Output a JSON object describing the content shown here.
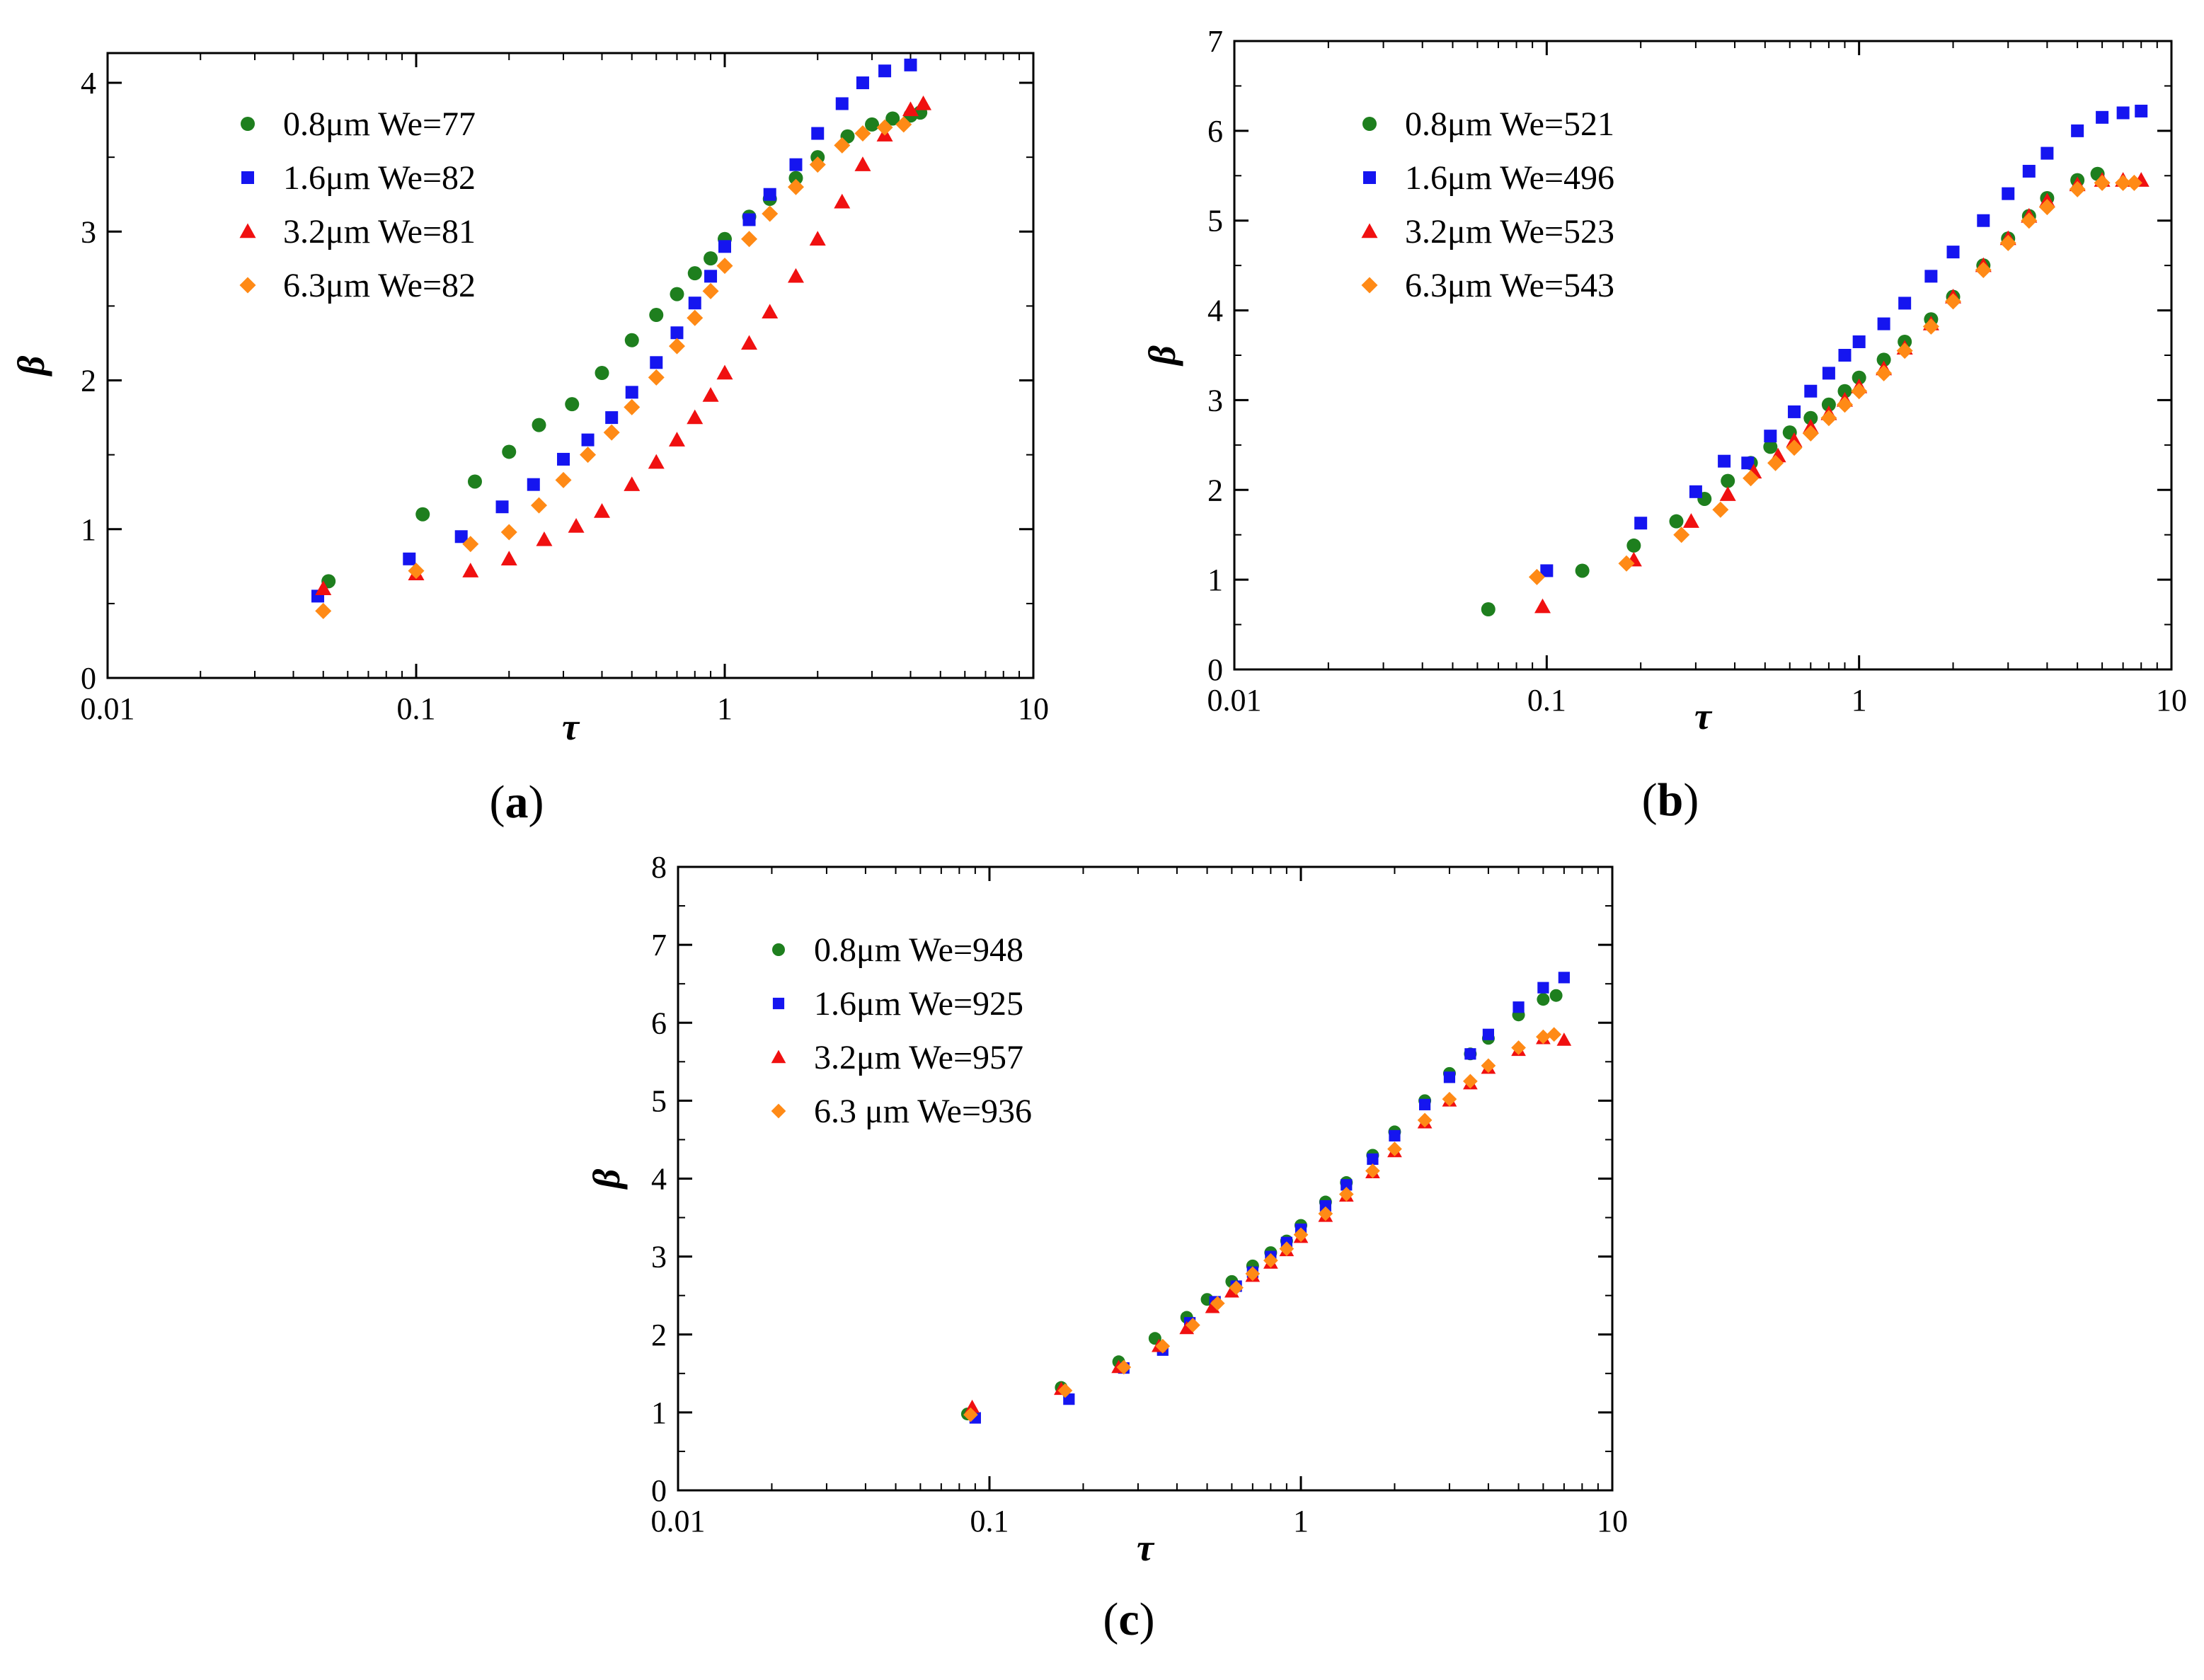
{
  "chart_data": [
    {
      "panel": "a",
      "caption": "(a)",
      "caption_letter": "a",
      "type": "scatter",
      "xscale": "log",
      "xlim": [
        0.01,
        10
      ],
      "ylim": [
        0,
        4.2
      ],
      "xticks": [
        0.01,
        0.1,
        1,
        10
      ],
      "xtick_labels": [
        "0.01",
        "0.1",
        "1",
        "10"
      ],
      "yticks": [
        0,
        1,
        2,
        3,
        4
      ],
      "ytick_labels": [
        "0",
        "1",
        "2",
        "3",
        "4"
      ],
      "xlabel": "τ",
      "ylabel": "β",
      "legend_position": "top-left",
      "series": [
        {
          "name": "0.8μm We=77",
          "marker": "circle",
          "color": "#1e7f1e",
          "x": [
            0.052,
            0.105,
            0.155,
            0.2,
            0.25,
            0.32,
            0.4,
            0.5,
            0.6,
            0.7,
            0.8,
            0.9,
            1.0,
            1.2,
            1.4,
            1.7,
            2.0,
            2.5,
            3.0,
            3.5,
            4.0,
            4.3
          ],
          "values": [
            0.65,
            1.1,
            1.32,
            1.52,
            1.7,
            1.84,
            2.05,
            2.27,
            2.44,
            2.58,
            2.72,
            2.82,
            2.95,
            3.1,
            3.22,
            3.36,
            3.5,
            3.64,
            3.72,
            3.76,
            3.78,
            3.8
          ]
        },
        {
          "name": "1.6μm We=82",
          "marker": "square",
          "color": "#1515f0",
          "x": [
            0.048,
            0.095,
            0.14,
            0.19,
            0.24,
            0.3,
            0.36,
            0.43,
            0.5,
            0.6,
            0.7,
            0.8,
            0.9,
            1.0,
            1.2,
            1.4,
            1.7,
            2.0,
            2.4,
            2.8,
            3.3,
            4.0
          ],
          "values": [
            0.55,
            0.8,
            0.95,
            1.15,
            1.3,
            1.47,
            1.6,
            1.75,
            1.92,
            2.12,
            2.32,
            2.52,
            2.7,
            2.9,
            3.08,
            3.25,
            3.45,
            3.66,
            3.86,
            4.0,
            4.08,
            4.12
          ]
        },
        {
          "name": "3.2μm We=81",
          "marker": "triangle",
          "color": "#f01010",
          "x": [
            0.05,
            0.1,
            0.15,
            0.2,
            0.26,
            0.33,
            0.4,
            0.5,
            0.6,
            0.7,
            0.8,
            0.9,
            1.0,
            1.2,
            1.4,
            1.7,
            2.0,
            2.4,
            2.8,
            3.3,
            4.0,
            4.4
          ],
          "values": [
            0.6,
            0.7,
            0.72,
            0.8,
            0.93,
            1.02,
            1.12,
            1.3,
            1.45,
            1.6,
            1.75,
            1.9,
            2.05,
            2.25,
            2.46,
            2.7,
            2.95,
            3.2,
            3.45,
            3.65,
            3.82,
            3.86
          ]
        },
        {
          "name": "6.3μm We=82",
          "marker": "diamond",
          "color": "#ff8a16",
          "x": [
            0.05,
            0.1,
            0.15,
            0.2,
            0.25,
            0.3,
            0.36,
            0.43,
            0.5,
            0.6,
            0.7,
            0.8,
            0.9,
            1.0,
            1.2,
            1.4,
            1.7,
            2.0,
            2.4,
            2.8,
            3.3,
            3.8
          ],
          "values": [
            0.45,
            0.72,
            0.9,
            0.98,
            1.16,
            1.33,
            1.5,
            1.65,
            1.82,
            2.02,
            2.23,
            2.42,
            2.6,
            2.77,
            2.95,
            3.12,
            3.3,
            3.45,
            3.58,
            3.66,
            3.7,
            3.72
          ]
        }
      ]
    },
    {
      "panel": "b",
      "caption": "(b)",
      "caption_letter": "b",
      "type": "scatter",
      "xscale": "log",
      "xlim": [
        0.01,
        10
      ],
      "ylim": [
        0,
        7
      ],
      "xticks": [
        0.01,
        0.1,
        1,
        10
      ],
      "xtick_labels": [
        "0.01",
        "0.1",
        "1",
        "10"
      ],
      "yticks": [
        0,
        1,
        2,
        3,
        4,
        5,
        6,
        7
      ],
      "ytick_labels": [
        "0",
        "1",
        "2",
        "3",
        "4",
        "5",
        "6",
        "7"
      ],
      "xlabel": "τ",
      "ylabel": "β",
      "legend_position": "top-left",
      "series": [
        {
          "name": "0.8μm We=521",
          "marker": "circle",
          "color": "#1e7f1e",
          "x": [
            0.065,
            0.13,
            0.19,
            0.26,
            0.32,
            0.38,
            0.45,
            0.52,
            0.6,
            0.7,
            0.8,
            0.9,
            1.0,
            1.2,
            1.4,
            1.7,
            2.0,
            2.5,
            3.0,
            3.5,
            4.0,
            5.0,
            5.8
          ],
          "values": [
            0.67,
            1.1,
            1.38,
            1.65,
            1.9,
            2.1,
            2.3,
            2.48,
            2.64,
            2.8,
            2.95,
            3.1,
            3.25,
            3.45,
            3.65,
            3.9,
            4.15,
            4.5,
            4.8,
            5.05,
            5.25,
            5.45,
            5.52
          ]
        },
        {
          "name": "1.6μm We=496",
          "marker": "square",
          "color": "#1515f0",
          "x": [
            0.1,
            0.2,
            0.3,
            0.37,
            0.44,
            0.52,
            0.62,
            0.7,
            0.8,
            0.9,
            1.0,
            1.2,
            1.4,
            1.7,
            2.0,
            2.5,
            3.0,
            3.5,
            4.0,
            5.0,
            6.0,
            7.0,
            8.0
          ],
          "values": [
            1.1,
            1.63,
            1.98,
            2.32,
            2.3,
            2.6,
            2.87,
            3.1,
            3.3,
            3.5,
            3.65,
            3.85,
            4.08,
            4.38,
            4.65,
            5.0,
            5.3,
            5.55,
            5.75,
            6.0,
            6.15,
            6.2,
            6.22
          ]
        },
        {
          "name": "3.2μm We=523",
          "marker": "triangle",
          "color": "#f01010",
          "x": [
            0.097,
            0.19,
            0.29,
            0.38,
            0.46,
            0.55,
            0.62,
            0.7,
            0.8,
            0.9,
            1.0,
            1.2,
            1.4,
            1.7,
            2.0,
            2.5,
            3.0,
            3.5,
            4.0,
            5.0,
            6.0,
            7.0,
            8.0
          ],
          "values": [
            0.7,
            1.22,
            1.65,
            1.95,
            2.2,
            2.38,
            2.55,
            2.7,
            2.85,
            3.0,
            3.15,
            3.35,
            3.58,
            3.85,
            4.15,
            4.5,
            4.8,
            5.05,
            5.22,
            5.4,
            5.45,
            5.45,
            5.45
          ]
        },
        {
          "name": "6.3μm We=543",
          "marker": "diamond",
          "color": "#ff8a16",
          "x": [
            0.093,
            0.18,
            0.27,
            0.36,
            0.45,
            0.54,
            0.62,
            0.7,
            0.8,
            0.9,
            1.0,
            1.2,
            1.4,
            1.7,
            2.0,
            2.5,
            3.0,
            3.5,
            4.0,
            5.0,
            6.0,
            7.0,
            7.6
          ],
          "values": [
            1.03,
            1.18,
            1.5,
            1.78,
            2.13,
            2.3,
            2.47,
            2.63,
            2.8,
            2.95,
            3.1,
            3.3,
            3.55,
            3.82,
            4.1,
            4.45,
            4.75,
            5.0,
            5.15,
            5.35,
            5.42,
            5.42,
            5.42
          ]
        }
      ]
    },
    {
      "panel": "c",
      "caption": "(c)",
      "caption_letter": "c",
      "type": "scatter",
      "xscale": "log",
      "xlim": [
        0.01,
        10
      ],
      "ylim": [
        0,
        8
      ],
      "xticks": [
        0.01,
        0.1,
        1,
        10
      ],
      "xtick_labels": [
        "0.01",
        "0.1",
        "1",
        "10"
      ],
      "yticks": [
        0,
        1,
        2,
        3,
        4,
        5,
        6,
        7,
        8
      ],
      "ytick_labels": [
        "0",
        "1",
        "2",
        "3",
        "4",
        "5",
        "6",
        "7",
        "8"
      ],
      "xlabel": "τ",
      "ylabel": "β",
      "legend_position": "top-left",
      "series": [
        {
          "name": "0.8μm We=948",
          "marker": "circle",
          "color": "#1e7f1e",
          "x": [
            0.085,
            0.17,
            0.26,
            0.34,
            0.43,
            0.5,
            0.6,
            0.7,
            0.8,
            0.9,
            1.0,
            1.2,
            1.4,
            1.7,
            2.0,
            2.5,
            3.0,
            3.5,
            4.0,
            5.0,
            6.0,
            6.6
          ],
          "values": [
            0.98,
            1.32,
            1.65,
            1.95,
            2.22,
            2.45,
            2.68,
            2.88,
            3.05,
            3.2,
            3.4,
            3.7,
            3.95,
            4.3,
            4.6,
            5.0,
            5.35,
            5.6,
            5.8,
            6.1,
            6.3,
            6.35
          ]
        },
        {
          "name": "1.6μm We=925",
          "marker": "square",
          "color": "#1515f0",
          "x": [
            0.09,
            0.18,
            0.27,
            0.36,
            0.44,
            0.53,
            0.62,
            0.7,
            0.8,
            0.9,
            1.0,
            1.2,
            1.4,
            1.7,
            2.0,
            2.5,
            3.0,
            3.5,
            4.0,
            5.0,
            6.0,
            7.0
          ],
          "values": [
            0.93,
            1.17,
            1.57,
            1.8,
            2.15,
            2.42,
            2.62,
            2.8,
            3.0,
            3.18,
            3.35,
            3.65,
            3.92,
            4.25,
            4.55,
            4.95,
            5.3,
            5.6,
            5.85,
            6.2,
            6.45,
            6.58
          ]
        },
        {
          "name": "3.2μm We=957",
          "marker": "triangle",
          "color": "#f01010",
          "x": [
            0.088,
            0.17,
            0.26,
            0.35,
            0.43,
            0.52,
            0.6,
            0.7,
            0.8,
            0.9,
            1.0,
            1.2,
            1.4,
            1.7,
            2.0,
            2.5,
            3.0,
            3.5,
            4.0,
            5.0,
            6.0,
            7.0
          ],
          "values": [
            1.07,
            1.3,
            1.58,
            1.85,
            2.08,
            2.35,
            2.55,
            2.75,
            2.92,
            3.08,
            3.25,
            3.52,
            3.78,
            4.08,
            4.35,
            4.72,
            5.0,
            5.22,
            5.42,
            5.65,
            5.8,
            5.78
          ]
        },
        {
          "name": "6.3 μm We=936",
          "marker": "diamond",
          "color": "#ff8a16",
          "x": [
            0.087,
            0.175,
            0.27,
            0.36,
            0.45,
            0.54,
            0.62,
            0.7,
            0.8,
            0.9,
            1.0,
            1.2,
            1.4,
            1.7,
            2.0,
            2.5,
            3.0,
            3.5,
            4.0,
            5.0,
            6.0,
            6.5
          ],
          "values": [
            0.97,
            1.28,
            1.58,
            1.85,
            2.12,
            2.4,
            2.6,
            2.78,
            2.95,
            3.1,
            3.28,
            3.55,
            3.8,
            4.1,
            4.38,
            4.75,
            5.02,
            5.25,
            5.45,
            5.68,
            5.82,
            5.85
          ]
        }
      ]
    }
  ]
}
